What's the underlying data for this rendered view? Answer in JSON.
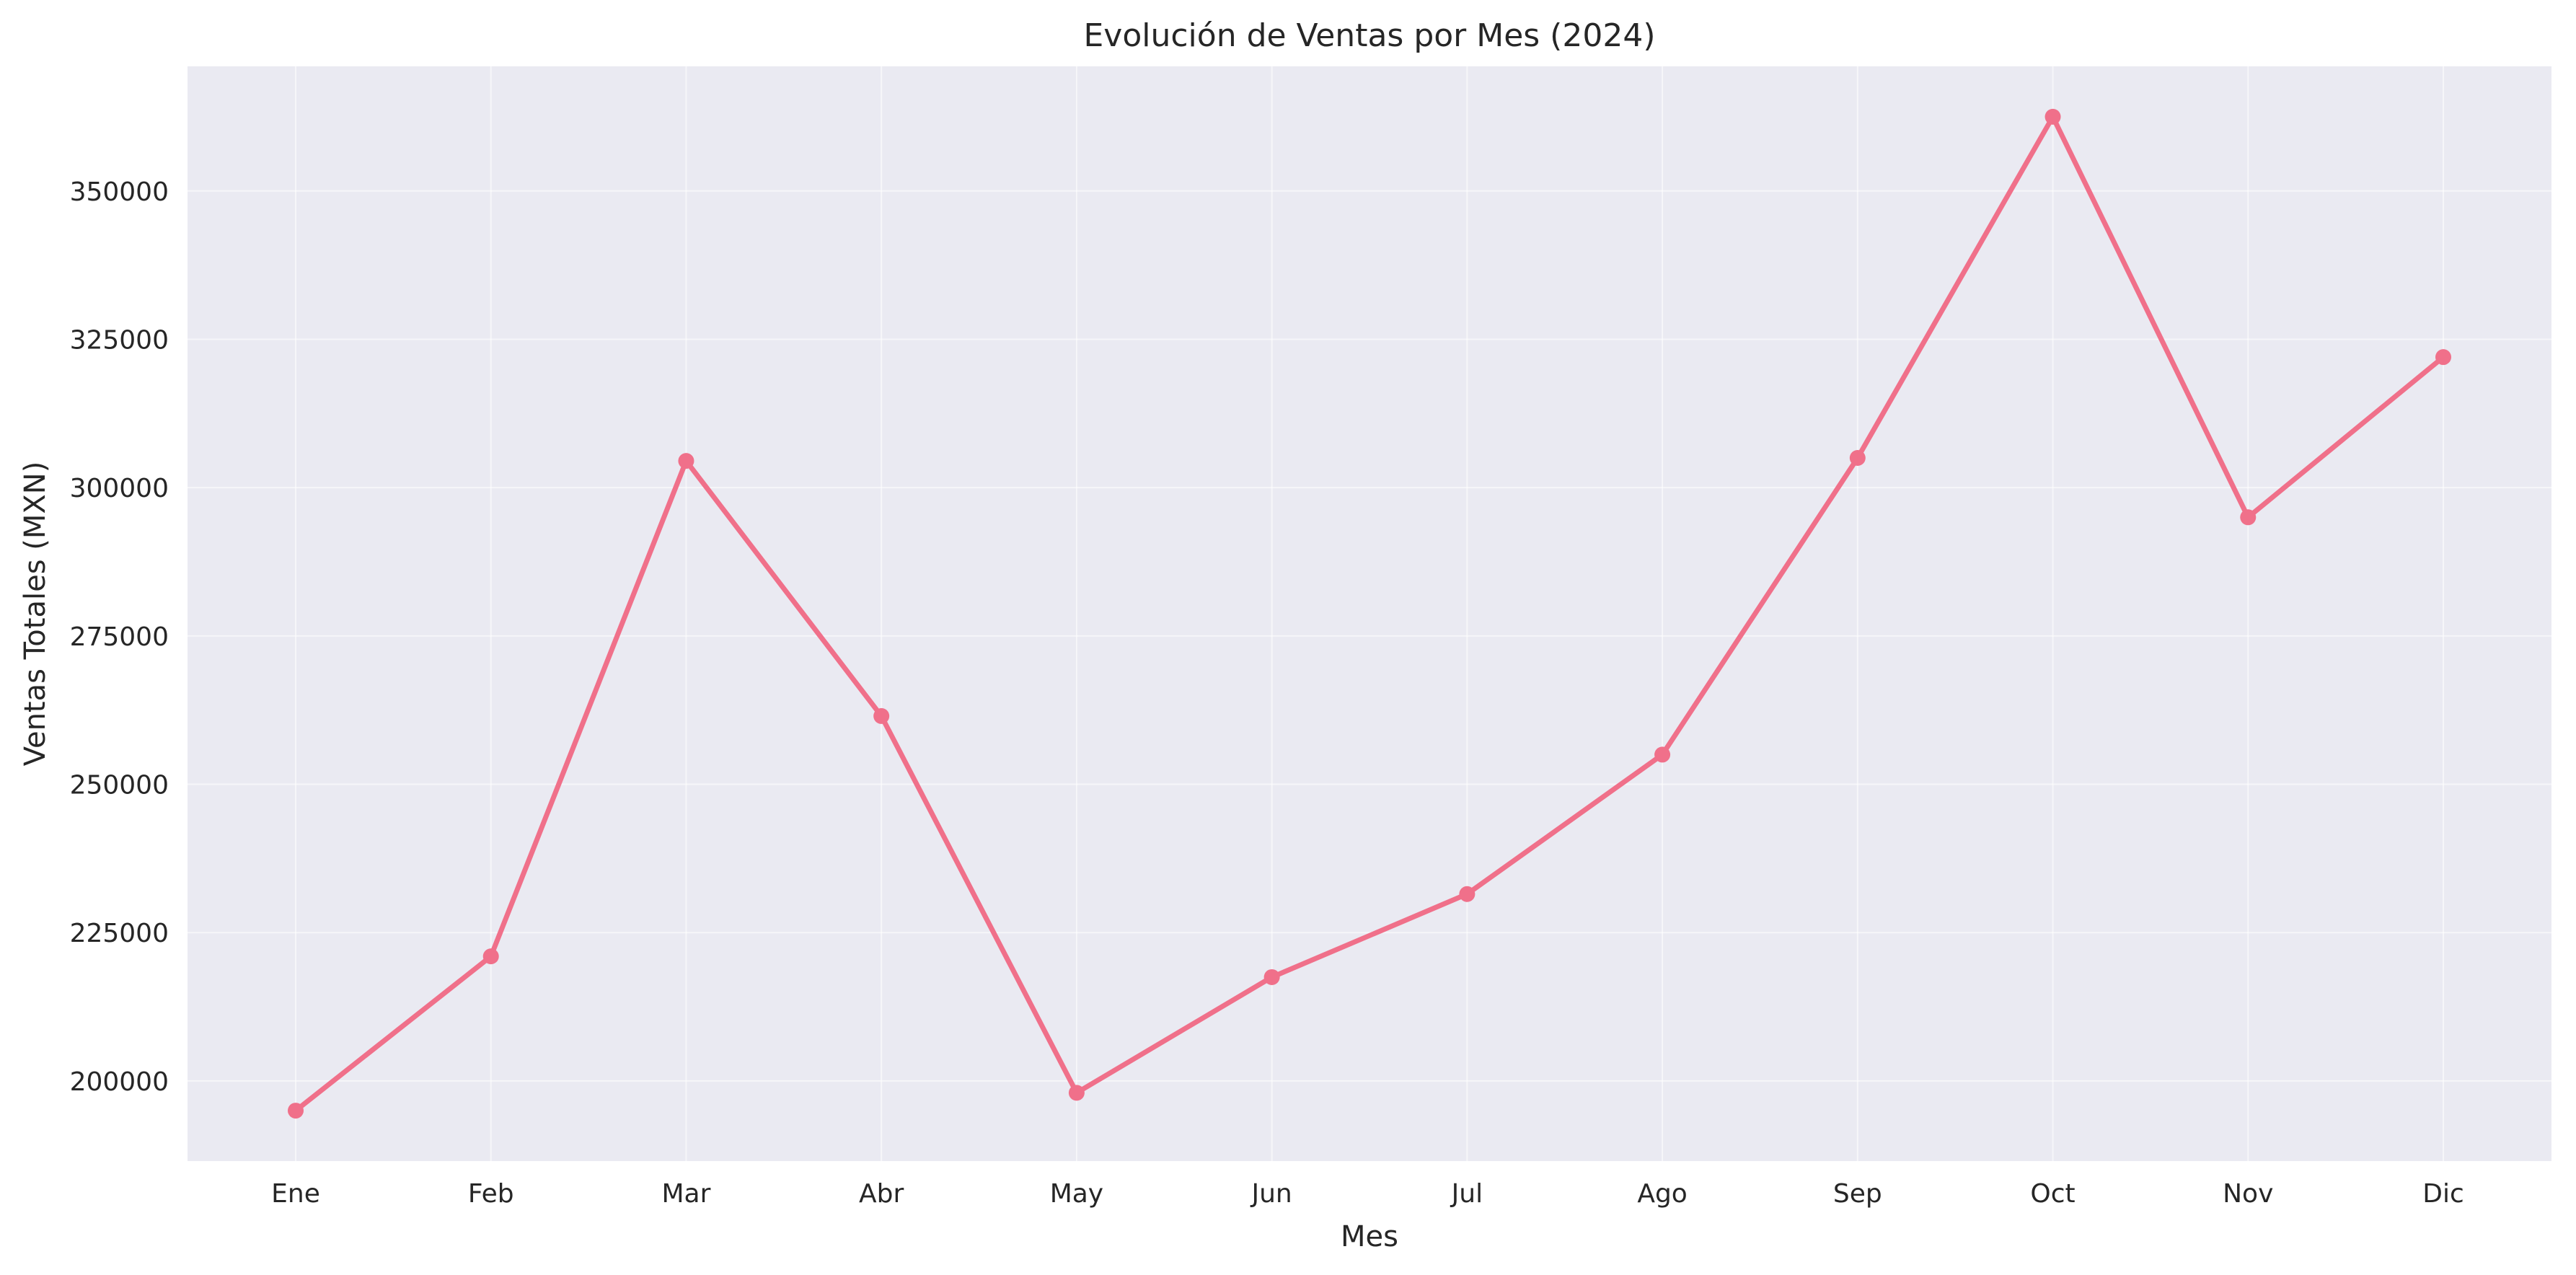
{
  "chart_data": {
    "type": "line",
    "title": "Evolución de Ventas por Mes (2024)",
    "xlabel": "Mes",
    "ylabel": "Ventas Totales (MXN)",
    "categories": [
      "Ene",
      "Feb",
      "Mar",
      "Abr",
      "May",
      "Jun",
      "Jul",
      "Ago",
      "Sep",
      "Oct",
      "Nov",
      "Dic"
    ],
    "series": [
      {
        "values": [
          195000,
          221000,
          304500,
          261500,
          198000,
          217500,
          231500,
          255000,
          305000,
          362500,
          295000,
          322000
        ],
        "color": "#f0708a",
        "marker": "circle"
      }
    ],
    "yticks": [
      200000,
      225000,
      250000,
      275000,
      300000,
      325000,
      350000
    ],
    "ylim": [
      186500,
      371000
    ],
    "grid": true,
    "legend": "none",
    "colors": {
      "plot_background": "#eaeaf2",
      "grid": "#ffffff",
      "text": "#262626"
    }
  }
}
